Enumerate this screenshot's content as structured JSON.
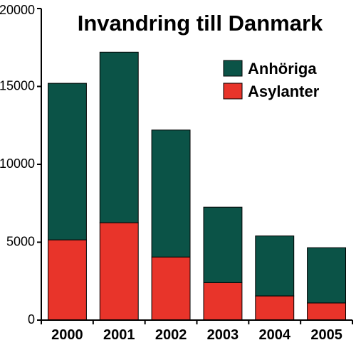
{
  "chart_data": {
    "type": "bar",
    "stacked": true,
    "title": "Invandring till Danmark",
    "xlabel": "",
    "ylabel": "",
    "categories": [
      "2000",
      "2001",
      "2002",
      "2003",
      "2004",
      "2005"
    ],
    "series": [
      {
        "name": "Asylanter",
        "values": [
          5150,
          6250,
          4050,
          2400,
          1550,
          1100
        ],
        "color": "#e8342a"
      },
      {
        "name": "Anhöriga",
        "values": [
          10050,
          10950,
          8150,
          4850,
          3850,
          3550
        ],
        "color": "#0b5347"
      }
    ],
    "totals": [
      15200,
      17200,
      12200,
      7250,
      5400,
      4650
    ],
    "ylim": [
      0,
      20000
    ],
    "yticks": [
      "0",
      "5000",
      "10000",
      "15000",
      "20000"
    ],
    "grid": false,
    "legend_position": "top-right"
  }
}
